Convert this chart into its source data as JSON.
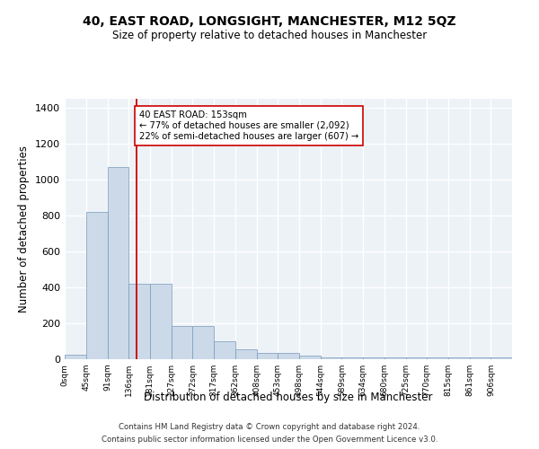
{
  "title": "40, EAST ROAD, LONGSIGHT, MANCHESTER, M12 5QZ",
  "subtitle": "Size of property relative to detached houses in Manchester",
  "xlabel": "Distribution of detached houses by size in Manchester",
  "ylabel": "Number of detached properties",
  "bar_color": "#ccd9e8",
  "bar_edge_color": "#7799bb",
  "background_color": "#edf2f7",
  "grid_color": "#ffffff",
  "categories": [
    "0sqm",
    "45sqm",
    "91sqm",
    "136sqm",
    "181sqm",
    "227sqm",
    "272sqm",
    "317sqm",
    "362sqm",
    "408sqm",
    "453sqm",
    "498sqm",
    "544sqm",
    "589sqm",
    "634sqm",
    "680sqm",
    "725sqm",
    "770sqm",
    "815sqm",
    "861sqm",
    "906sqm"
  ],
  "values": [
    25,
    820,
    1070,
    420,
    420,
    185,
    185,
    100,
    55,
    35,
    35,
    20,
    10,
    10,
    10,
    10,
    10,
    10,
    10,
    10,
    10
  ],
  "bin_edges": [
    0,
    45,
    91,
    136,
    181,
    227,
    272,
    317,
    362,
    408,
    453,
    498,
    544,
    589,
    634,
    680,
    725,
    770,
    815,
    861,
    906,
    951
  ],
  "vline_x": 153,
  "vline_color": "#cc0000",
  "annotation_text": "40 EAST ROAD: 153sqm\n← 77% of detached houses are smaller (2,092)\n22% of semi-detached houses are larger (607) →",
  "annotation_box_color": "#ffffff",
  "annotation_box_edge": "#cc0000",
  "ylim": [
    0,
    1450
  ],
  "yticks": [
    0,
    200,
    400,
    600,
    800,
    1000,
    1200,
    1400
  ],
  "footer_line1": "Contains HM Land Registry data © Crown copyright and database right 2024.",
  "footer_line2": "Contains public sector information licensed under the Open Government Licence v3.0."
}
